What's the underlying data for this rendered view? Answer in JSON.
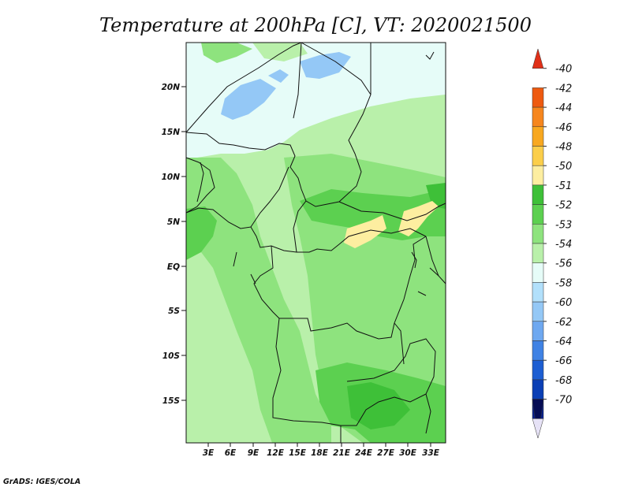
{
  "title": "Temperature at 200hPa [C], VT: 2020021500",
  "credit": "GrADS: IGES/COLA",
  "map": {
    "lat_labels": [
      "20N",
      "15N",
      "10N",
      "5N",
      "EQ",
      "5S",
      "10S",
      "15S"
    ],
    "lon_labels": [
      "3E",
      "6E",
      "9E",
      "12E",
      "15E",
      "18E",
      "21E",
      "24E",
      "27E",
      "30E",
      "33E"
    ]
  },
  "colorbar": {
    "labels": [
      "-40",
      "-42",
      "-44",
      "-46",
      "-48",
      "-50",
      "-51",
      "-52",
      "-53",
      "-54",
      "-56",
      "-58",
      "-60",
      "-62",
      "-64",
      "-66",
      "-68",
      "-70"
    ],
    "colors": [
      "#e03018",
      "#ee5a10",
      "#f6861e",
      "#f8a820",
      "#fbce4a",
      "#fdeea0",
      "#3ec038",
      "#5cd050",
      "#8ee37e",
      "#b9f0aa",
      "#e6fcf8",
      "#b2e0fb",
      "#94c8f6",
      "#6ea8f0",
      "#3f82e4",
      "#1d5ed2",
      "#0b3fb5",
      "#08208f",
      "#050c55"
    ]
  },
  "legend_colors": {
    "land_light": "#8ee37e",
    "land_pale": "#b9f0aa",
    "land_mid": "#5cd050",
    "land_dark": "#3ec038",
    "cool_band": "#e6fcf8",
    "blue_patch": "#94c8f6",
    "warm_patch": "#fdeea0",
    "border": "#111111"
  }
}
